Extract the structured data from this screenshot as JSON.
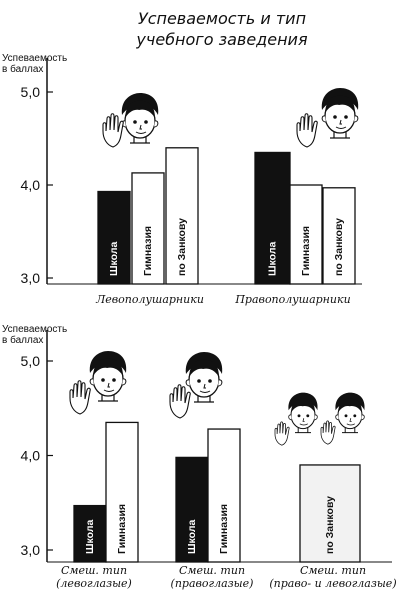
{
  "title_line1": "Успеваемость и тип",
  "title_line2": "учебного заведения",
  "chart_data": [
    {
      "type": "bar",
      "ylabel_line1": "Успеваемость",
      "ylabel_line2": "в баллах",
      "ylim": [
        3.0,
        5.0
      ],
      "yticks": [
        "5,0",
        "4,0",
        "3,0"
      ],
      "groups": [
        {
          "label_line1": "Левополушарники",
          "label_line2": "",
          "bars": [
            {
              "name": "Школа",
              "value": 3.93,
              "fill": "#111111"
            },
            {
              "name": "Гимназия",
              "value": 4.13,
              "fill": "#ffffff"
            },
            {
              "name": "по Занкову",
              "value": 4.4,
              "fill": "#ffffff"
            }
          ]
        },
        {
          "label_line1": "Правополушарники",
          "label_line2": "",
          "bars": [
            {
              "name": "Школа",
              "value": 4.35,
              "fill": "#111111"
            },
            {
              "name": "Гимназия",
              "value": 4.0,
              "fill": "#ffffff"
            },
            {
              "name": "по Занкову",
              "value": 3.97,
              "fill": "#ffffff"
            }
          ]
        }
      ]
    },
    {
      "type": "bar",
      "ylabel_line1": "Успеваемость",
      "ylabel_line2": "в баллах",
      "ylim": [
        3.0,
        5.0
      ],
      "yticks": [
        "5,0",
        "4,0",
        "3,0"
      ],
      "groups": [
        {
          "label_line1": "Смеш. тип",
          "label_line2": "(левоглазые)",
          "bars": [
            {
              "name": "Школа",
              "value": 3.47,
              "fill": "#111111"
            },
            {
              "name": "Гимназия",
              "value": 4.35,
              "fill": "#ffffff"
            }
          ]
        },
        {
          "label_line1": "Смеш. тип",
          "label_line2": "(правоглазые)",
          "bars": [
            {
              "name": "Школа",
              "value": 3.98,
              "fill": "#111111"
            },
            {
              "name": "Гимназия",
              "value": 4.28,
              "fill": "#ffffff"
            }
          ]
        },
        {
          "label_line1": "Смеш. тип",
          "label_line2": "(право- и левоглазые)",
          "bars": [
            {
              "name": "по Занкову",
              "value": 3.9,
              "fill": "#f2f2f2"
            }
          ]
        }
      ]
    }
  ]
}
